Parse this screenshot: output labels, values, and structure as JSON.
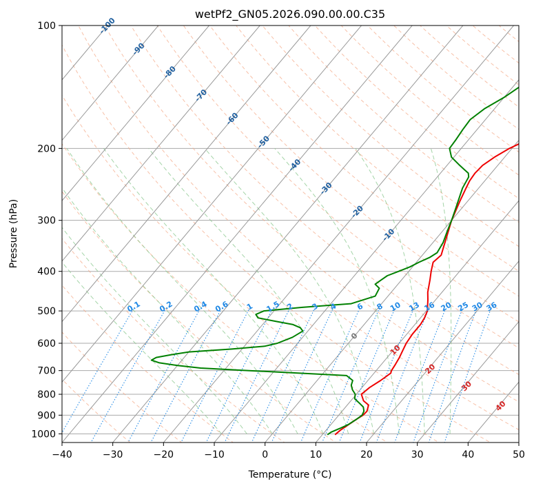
{
  "chart_data": {
    "type": "line",
    "title": "wetPf2_GN05.2026.090.00.00.C35",
    "xlabel": "Temperature (°C)",
    "ylabel": "Pressure (hPa)",
    "xlim": [
      -40,
      50
    ],
    "ylim": [
      1050,
      100
    ],
    "x_ticks": [
      -40,
      -30,
      -20,
      -10,
      0,
      10,
      20,
      30,
      40,
      50
    ],
    "x_tick_labels": [
      "−40",
      "−30",
      "−20",
      "−10",
      "0",
      "10",
      "20",
      "30",
      "40",
      "50"
    ],
    "y_ticks": [
      1000,
      900,
      800,
      700,
      600,
      500,
      400,
      300,
      200,
      100
    ],
    "y_tick_labels": [
      "1000",
      "900",
      "800",
      "700",
      "600",
      "500",
      "400",
      "300",
      "200",
      "100"
    ],
    "grid": true,
    "colors": {
      "temperature": "#ee0000",
      "dewpoint": "#008000",
      "isotherm": "#999999",
      "dry_adiabat": "#f4a582",
      "moist_adiabat": "#86c58a",
      "mixing_ratio": "#1f88e5",
      "temp_label": "#1f5f9f",
      "mr_label": "#1f88e5",
      "wet_label": "#d62728",
      "pgrid": "#aaaaaa"
    },
    "series": [
      {
        "name": "Temperature",
        "pressure": [
          1005,
          980,
          950,
          920,
          900,
          880,
          850,
          830,
          800,
          770,
          740,
          710,
          700,
          680,
          650,
          620,
          600,
          570,
          540,
          520,
          500,
          470,
          450,
          420,
          400,
          380,
          365,
          350,
          330,
          300,
          270,
          250,
          240,
          230,
          220,
          210,
          200,
          190,
          180,
          170,
          160,
          155,
          150,
          140,
          130,
          120,
          110,
          105,
          100
        ],
        "temperature": [
          12.5,
          12.8,
          13.5,
          14.2,
          14.8,
          14.9,
          14.2,
          12.5,
          11.0,
          11.5,
          12.5,
          13.3,
          13.0,
          12.8,
          12.4,
          11.8,
          11.4,
          11.1,
          11.1,
          10.8,
          10.2,
          8.5,
          7.2,
          5.6,
          4.4,
          3.3,
          3.7,
          2.9,
          1.8,
          0.0,
          -1.5,
          -2.5,
          -3.0,
          -3.2,
          -3.0,
          -2.0,
          -0.5,
          1.8,
          5.0,
          9.0,
          12.5,
          13.5,
          14.0,
          14.8,
          15.8,
          17.5,
          19.5,
          20.0,
          21.0
        ]
      },
      {
        "name": "Dewpoint",
        "pressure": [
          1005,
          990,
          970,
          950,
          920,
          900,
          880,
          860,
          840,
          820,
          800,
          780,
          760,
          740,
          720,
          700,
          690,
          680,
          670,
          660,
          650,
          640,
          630,
          620,
          610,
          600,
          580,
          560,
          550,
          540,
          530,
          520,
          510,
          500,
          490,
          480,
          460,
          440,
          430,
          420,
          410,
          400,
          390,
          380,
          370,
          360,
          340,
          320,
          300,
          280,
          260,
          250,
          240,
          235,
          230,
          225,
          220,
          210,
          200,
          190,
          180,
          170,
          160,
          150,
          140,
          130,
          120,
          110,
          100
        ],
        "dewpoint": [
          11.0,
          11.3,
          12.4,
          13.4,
          14.2,
          14.6,
          14.3,
          13.5,
          12.0,
          10.4,
          9.8,
          8.5,
          7.5,
          7.0,
          5.0,
          -15.0,
          -25.0,
          -30.0,
          -34.0,
          -36.0,
          -35.5,
          -33.0,
          -30.0,
          -22.0,
          -16.0,
          -14.0,
          -12.0,
          -11.0,
          -12.0,
          -14.0,
          -18.0,
          -22.0,
          -23.0,
          -22.0,
          -15.0,
          -6.0,
          -2.5,
          -3.0,
          -4.5,
          -4.0,
          -3.5,
          -2.0,
          -0.5,
          0.5,
          1.8,
          2.5,
          2.0,
          1.0,
          0.0,
          -1.2,
          -2.5,
          -3.2,
          -3.6,
          -3.8,
          -4.5,
          -6.0,
          -7.5,
          -10.5,
          -12.3,
          -12.5,
          -12.8,
          -13.0,
          -12.0,
          -10.0,
          -8.5,
          -7.0,
          -5.5,
          -4.0,
          -1.5
        ]
      }
    ],
    "isotherm_labels": [
      "-100",
      "-90",
      "-80",
      "-70",
      "-60",
      "-50",
      "-40",
      "-30",
      "-20",
      "-10",
      "0"
    ],
    "mixing_ratio_labels": [
      "0.1",
      "0.2",
      "0.4",
      "0.6",
      "1",
      "1.5",
      "2",
      "3",
      "4",
      "6",
      "8",
      "10",
      "13",
      "16",
      "20",
      "25",
      "30",
      "36"
    ],
    "wet_bulb_labels": [
      "10",
      "20",
      "30",
      "40"
    ]
  }
}
